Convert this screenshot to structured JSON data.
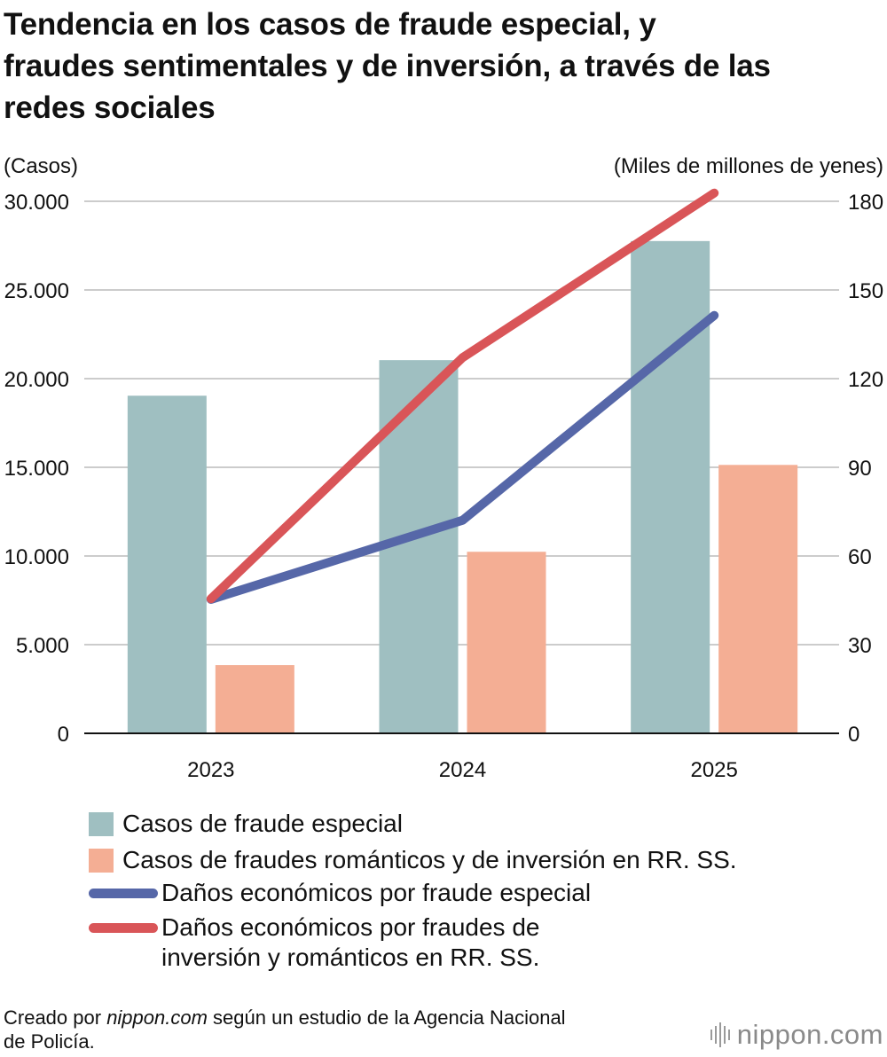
{
  "title": {
    "line1": "Tendencia en los casos de fraude especial, y",
    "line2": "fraudes sentimentales y de inversión, a través de las",
    "line3": "redes sociales"
  },
  "colors": {
    "bar_special": "#9fbfc1",
    "bar_romance": "#f4ae94",
    "line_special": "#5667a8",
    "line_romance": "#d95558",
    "grid": "#cccccc",
    "axis": "#111111"
  },
  "chart_data": {
    "type": "bar+line",
    "title": "Tendencia en los casos de fraude especial, y fraudes sentimentales y de inversión, a través de las redes sociales",
    "categories": [
      "2023",
      "2024",
      "2025"
    ],
    "left_axis": {
      "label": "(Casos)",
      "ylim": [
        0,
        30000
      ],
      "ticks": [
        0,
        5000,
        10000,
        15000,
        20000,
        25000,
        30000
      ],
      "tick_labels": [
        "0",
        "5.000",
        "10.000",
        "15.000",
        "20.000",
        "25.000",
        "30.000"
      ]
    },
    "right_axis": {
      "label": "(Miles de millones de yenes)",
      "ylim": [
        0,
        180
      ],
      "ticks": [
        0,
        30,
        60,
        90,
        120,
        150,
        180
      ],
      "tick_labels": [
        "0",
        "30",
        "60",
        "90",
        "120",
        "150",
        "180"
      ]
    },
    "grid": true,
    "series": [
      {
        "name": "Casos de fraude especial",
        "kind": "bar",
        "axis": "left",
        "color_key": "bar_special",
        "values": [
          19038,
          21043,
          27758
        ]
      },
      {
        "name": "Casos de fraudes románticos y de inversión en RR. SS.",
        "kind": "bar",
        "axis": "left",
        "color_key": "bar_romance",
        "values": [
          3846,
          10237,
          15135
        ]
      },
      {
        "name": "Daños económicos por fraude especial",
        "kind": "line",
        "axis": "right",
        "color_key": "line_special",
        "values": [
          45.3,
          72.1,
          141.4
        ]
      },
      {
        "name": "Daños económicos por fraudes de inversión y románticos en RR. SS.",
        "kind": "line",
        "axis": "right",
        "color_key": "line_romance",
        "values": [
          45.5,
          127.1,
          182.8
        ]
      }
    ]
  },
  "legend": {
    "bar_special": "Casos de fraude especial",
    "bar_romance": "Casos de fraudes románticos y de inversión en RR. SS.",
    "line_special": "Daños económicos por fraude especial",
    "line_romance_1": "Daños económicos por fraudes de",
    "line_romance_2": "inversión y románticos en RR. SS."
  },
  "footer": {
    "prefix": "Creado por ",
    "site": "nippon.com",
    "suffix": " según un estudio de la Agencia Nacional",
    "line2": "de Policía."
  },
  "logo": {
    "name": "nippon",
    "tld": ".com"
  }
}
